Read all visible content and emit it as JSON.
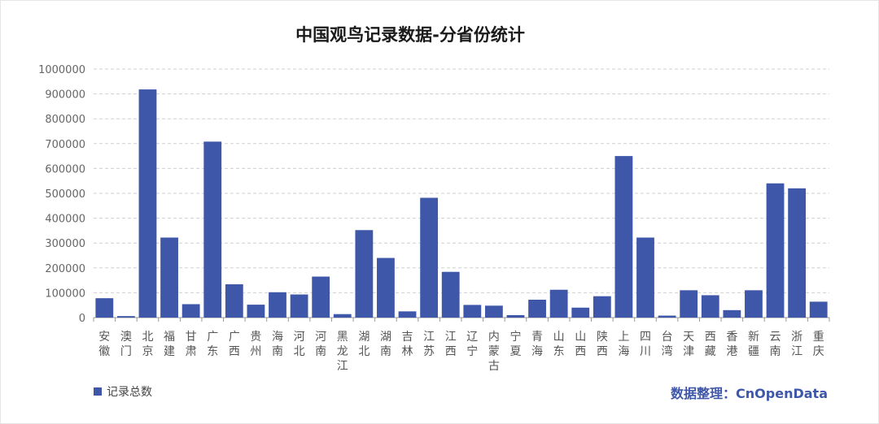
{
  "chart_data": {
    "type": "bar",
    "title": "中国观鸟记录数据-分省份统计",
    "categories": [
      "安徽",
      "澳门",
      "北京",
      "福建",
      "甘肃",
      "广东",
      "广西",
      "贵州",
      "海南",
      "河北",
      "河南",
      "黑龙江",
      "湖北",
      "湖南",
      "吉林",
      "江苏",
      "江西",
      "辽宁",
      "内蒙古",
      "宁夏",
      "青海",
      "山东",
      "山西",
      "陕西",
      "上海",
      "四川",
      "台湾",
      "天津",
      "西藏",
      "香港",
      "新疆",
      "云南",
      "浙江",
      "重庆"
    ],
    "series": [
      {
        "name": "记录总数",
        "values": [
          78000,
          6000,
          918000,
          322000,
          54000,
          708000,
          134000,
          52000,
          102000,
          93000,
          165000,
          14000,
          352000,
          240000,
          25000,
          482000,
          184000,
          51000,
          48000,
          10000,
          72000,
          112000,
          40000,
          86000,
          650000,
          322000,
          8000,
          110000,
          90000,
          30000,
          110000,
          540000,
          520000,
          64000
        ]
      }
    ],
    "ylim": [
      0,
      1000000
    ],
    "yticks": [
      "0",
      "100000",
      "200000",
      "300000",
      "400000",
      "500000",
      "600000",
      "700000",
      "800000",
      "900000",
      "1000000"
    ],
    "grid": true,
    "legend_position": "bottom-left",
    "bar_color": "#3f57a8"
  },
  "credit": "数据整理：CnOpenData"
}
